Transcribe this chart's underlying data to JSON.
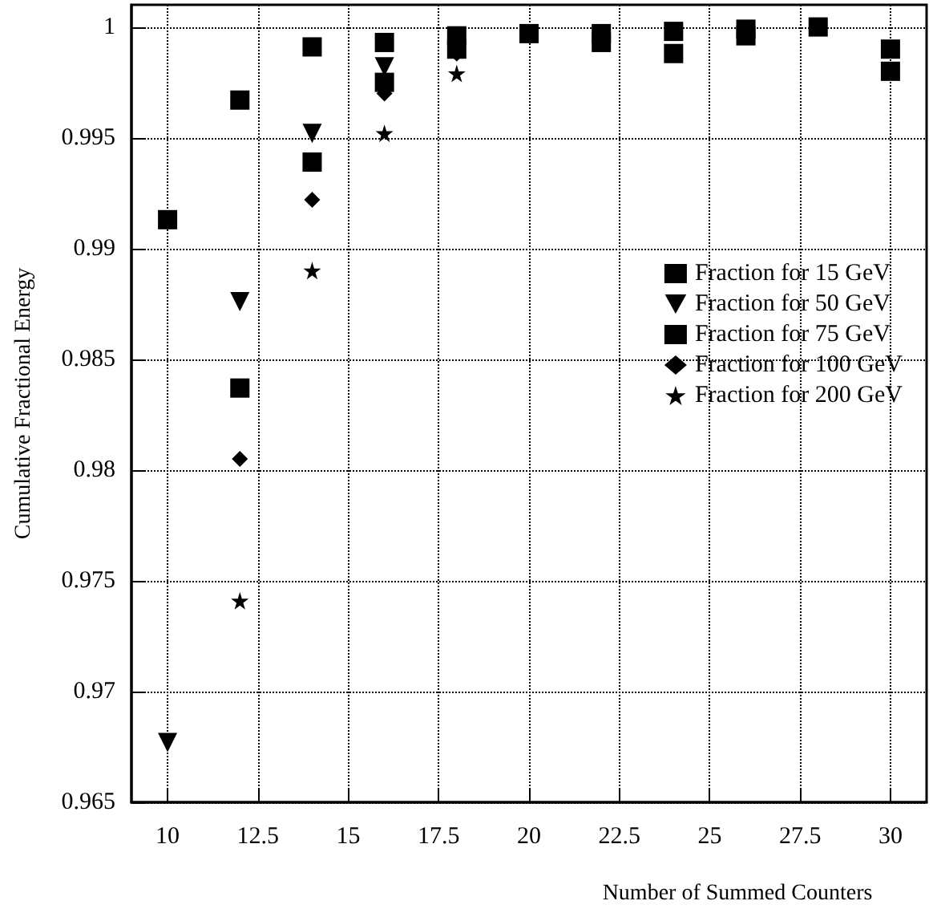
{
  "chart_data": {
    "type": "scatter",
    "xlabel": "Number of Summed Counters",
    "ylabel": "Cumulative Fractional Energy",
    "x": [
      10,
      12,
      14,
      16,
      18,
      20,
      22,
      24,
      26,
      28,
      30
    ],
    "series": [
      {
        "name": "Fraction for 15 GeV",
        "color": "#000000",
        "marker": "square",
        "values": [
          0.9913,
          0.9967,
          0.9991,
          0.9993,
          0.9996,
          0.9997,
          0.9993,
          0.9988,
          0.9996,
          1.0,
          0.998
        ]
      },
      {
        "name": "Fraction for 50 GeV",
        "color": "#000000",
        "marker": "triangle",
        "values": [
          0.9677,
          0.9876,
          0.9952,
          0.9982,
          null,
          null,
          null,
          null,
          null,
          null,
          null
        ]
      },
      {
        "name": "Fraction for 75 GeV",
        "color": "#000000",
        "marker": "square",
        "values": [
          null,
          0.9837,
          0.9939,
          0.9975,
          0.999,
          null,
          0.9997,
          0.9998,
          0.9999,
          null,
          0.999
        ]
      },
      {
        "name": "Fraction for 100 GeV",
        "color": "#000000",
        "marker": "diamond",
        "values": [
          null,
          0.9805,
          0.9922,
          0.997,
          0.9988,
          null,
          null,
          null,
          null,
          null,
          null
        ]
      },
      {
        "name": "Fraction for 200 GeV",
        "color": "#000000",
        "marker": "star",
        "values": [
          null,
          0.9741,
          0.989,
          0.9952,
          0.9979,
          null,
          null,
          null,
          null,
          null,
          null
        ]
      }
    ],
    "xlim": [
      9,
      31
    ],
    "xticks": [
      10,
      12.5,
      15,
      17.5,
      20,
      22.5,
      25,
      27.5,
      30
    ],
    "ylim": [
      0.965,
      1.001
    ],
    "yticks": [
      0.965,
      0.97,
      0.975,
      0.98,
      0.985,
      0.99,
      0.995,
      1
    ],
    "grid": true,
    "legend": "right"
  }
}
